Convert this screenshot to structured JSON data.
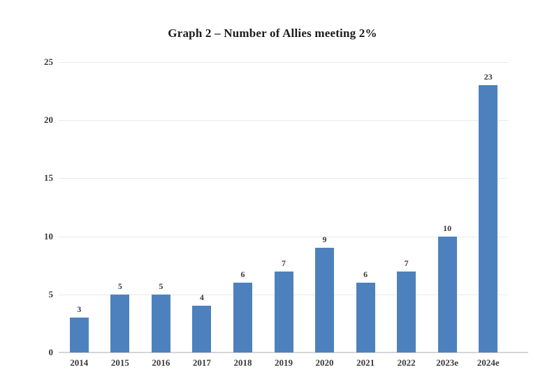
{
  "chart_data": {
    "type": "bar",
    "title": "Graph 2 – Number of Allies meeting 2%",
    "categories": [
      "2014",
      "2015",
      "2016",
      "2017",
      "2018",
      "2019",
      "2020",
      "2021",
      "2022",
      "2023e",
      "2024e"
    ],
    "values": [
      3,
      5,
      5,
      4,
      6,
      7,
      9,
      6,
      7,
      10,
      23
    ],
    "data_labels": [
      3,
      5,
      5,
      4,
      6,
      7,
      9,
      6,
      7,
      10,
      23
    ],
    "yticks": [
      0,
      5,
      10,
      15,
      20,
      25
    ],
    "ylim": [
      0,
      25
    ],
    "xlabel": "",
    "ylabel": "",
    "grid": "horizontal",
    "legend": "none",
    "bar_color": "#4d81bd",
    "gridline_color": "#e9e9e9",
    "axis_line_color": "#d6d6d6",
    "label_color": "#3a3a3a",
    "title_color": "#1b1b1b"
  }
}
